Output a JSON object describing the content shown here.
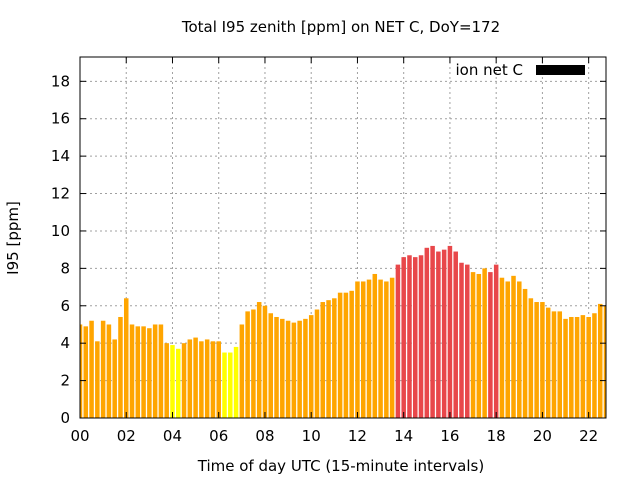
{
  "chart_data": {
    "type": "bar",
    "title": "Total I95 zenith [ppm] on NET C, DoY=172",
    "xlabel": "Time of day UTC (15-minute intervals)",
    "ylabel": "I95 [ppm]",
    "ylim": [
      0,
      19.3
    ],
    "xlim": [
      0,
      22.75
    ],
    "y_ticks": [
      0,
      2,
      4,
      6,
      8,
      10,
      12,
      14,
      16,
      18
    ],
    "x_ticks": [
      {
        "v": 0,
        "label": "00"
      },
      {
        "v": 2,
        "label": "02"
      },
      {
        "v": 4,
        "label": "04"
      },
      {
        "v": 6,
        "label": "06"
      },
      {
        "v": 8,
        "label": "08"
      },
      {
        "v": 10,
        "label": "10"
      },
      {
        "v": 12,
        "label": "12"
      },
      {
        "v": 14,
        "label": "14"
      },
      {
        "v": 16,
        "label": "16"
      },
      {
        "v": 18,
        "label": "18"
      },
      {
        "v": 20,
        "label": "20"
      },
      {
        "v": 22,
        "label": "22"
      }
    ],
    "grid": true,
    "legend": {
      "label": "ion net C",
      "color": "#000000",
      "placement": "top-right"
    },
    "bar_interval_hours": 0.25,
    "values": [
      5.0,
      4.9,
      5.2,
      4.1,
      5.2,
      5.0,
      4.2,
      5.4,
      6.4,
      5.0,
      4.9,
      4.9,
      4.8,
      5.0,
      5.0,
      4.0,
      3.9,
      3.7,
      4.0,
      4.2,
      4.3,
      4.1,
      4.2,
      4.1,
      4.1,
      3.5,
      3.5,
      3.8,
      5.0,
      5.7,
      5.8,
      6.2,
      6.0,
      5.6,
      5.4,
      5.3,
      5.2,
      5.1,
      5.2,
      5.3,
      5.5,
      5.8,
      6.2,
      6.3,
      6.4,
      6.7,
      6.7,
      6.8,
      7.3,
      7.3,
      7.4,
      7.7,
      7.4,
      7.3,
      7.5,
      8.2,
      8.6,
      8.7,
      8.6,
      8.7,
      9.1,
      9.2,
      8.9,
      9.0,
      9.2,
      8.9,
      8.3,
      8.2,
      7.8,
      7.7,
      8.0,
      7.8,
      8.2,
      7.5,
      7.3,
      7.6,
      7.3,
      6.9,
      6.4,
      6.2,
      6.2,
      5.9,
      5.7,
      5.7,
      5.3,
      5.4,
      5.4,
      5.5,
      5.4,
      5.6,
      6.1,
      6.0,
      6.3
    ],
    "colors": [
      "#ffa500",
      "#ffa500",
      "#ffa500",
      "#ffa500",
      "#ffa500",
      "#ffa500",
      "#ffa500",
      "#ffa500",
      "#ffa500",
      "#ffa500",
      "#ffa500",
      "#ffa500",
      "#ffa500",
      "#ffa500",
      "#ffa500",
      "#ffa500",
      "#ffff00",
      "#ffff00",
      "#ffa500",
      "#ffa500",
      "#ffa500",
      "#ffa500",
      "#ffa500",
      "#ffa500",
      "#ffa500",
      "#ffff00",
      "#ffff00",
      "#ffff00",
      "#ffa500",
      "#ffa500",
      "#ffa500",
      "#ffa500",
      "#ffa500",
      "#ffa500",
      "#ffa500",
      "#ffa500",
      "#ffa500",
      "#ffa500",
      "#ffa500",
      "#ffa500",
      "#ffa500",
      "#ffa500",
      "#ffa500",
      "#ffa500",
      "#ffa500",
      "#ffa500",
      "#ffa500",
      "#ffa500",
      "#ffa500",
      "#ffa500",
      "#ffa500",
      "#ffa500",
      "#ffa500",
      "#ffa500",
      "#ffa500",
      "#e8474a",
      "#e8474a",
      "#e8474a",
      "#e8474a",
      "#e8474a",
      "#e8474a",
      "#e8474a",
      "#e8474a",
      "#e8474a",
      "#e8474a",
      "#e8474a",
      "#e8474a",
      "#e8474a",
      "#ffa500",
      "#ffa500",
      "#ffa500",
      "#e8474a",
      "#e8474a",
      "#ffa500",
      "#ffa500",
      "#ffa500",
      "#ffa500",
      "#ffa500",
      "#ffa500",
      "#ffa500",
      "#ffa500",
      "#ffa500",
      "#ffa500",
      "#ffa500",
      "#ffa500",
      "#ffa500",
      "#ffa500",
      "#ffa500",
      "#ffa500",
      "#ffa500",
      "#ffa500",
      "#ffa500",
      "#ffa500"
    ]
  }
}
